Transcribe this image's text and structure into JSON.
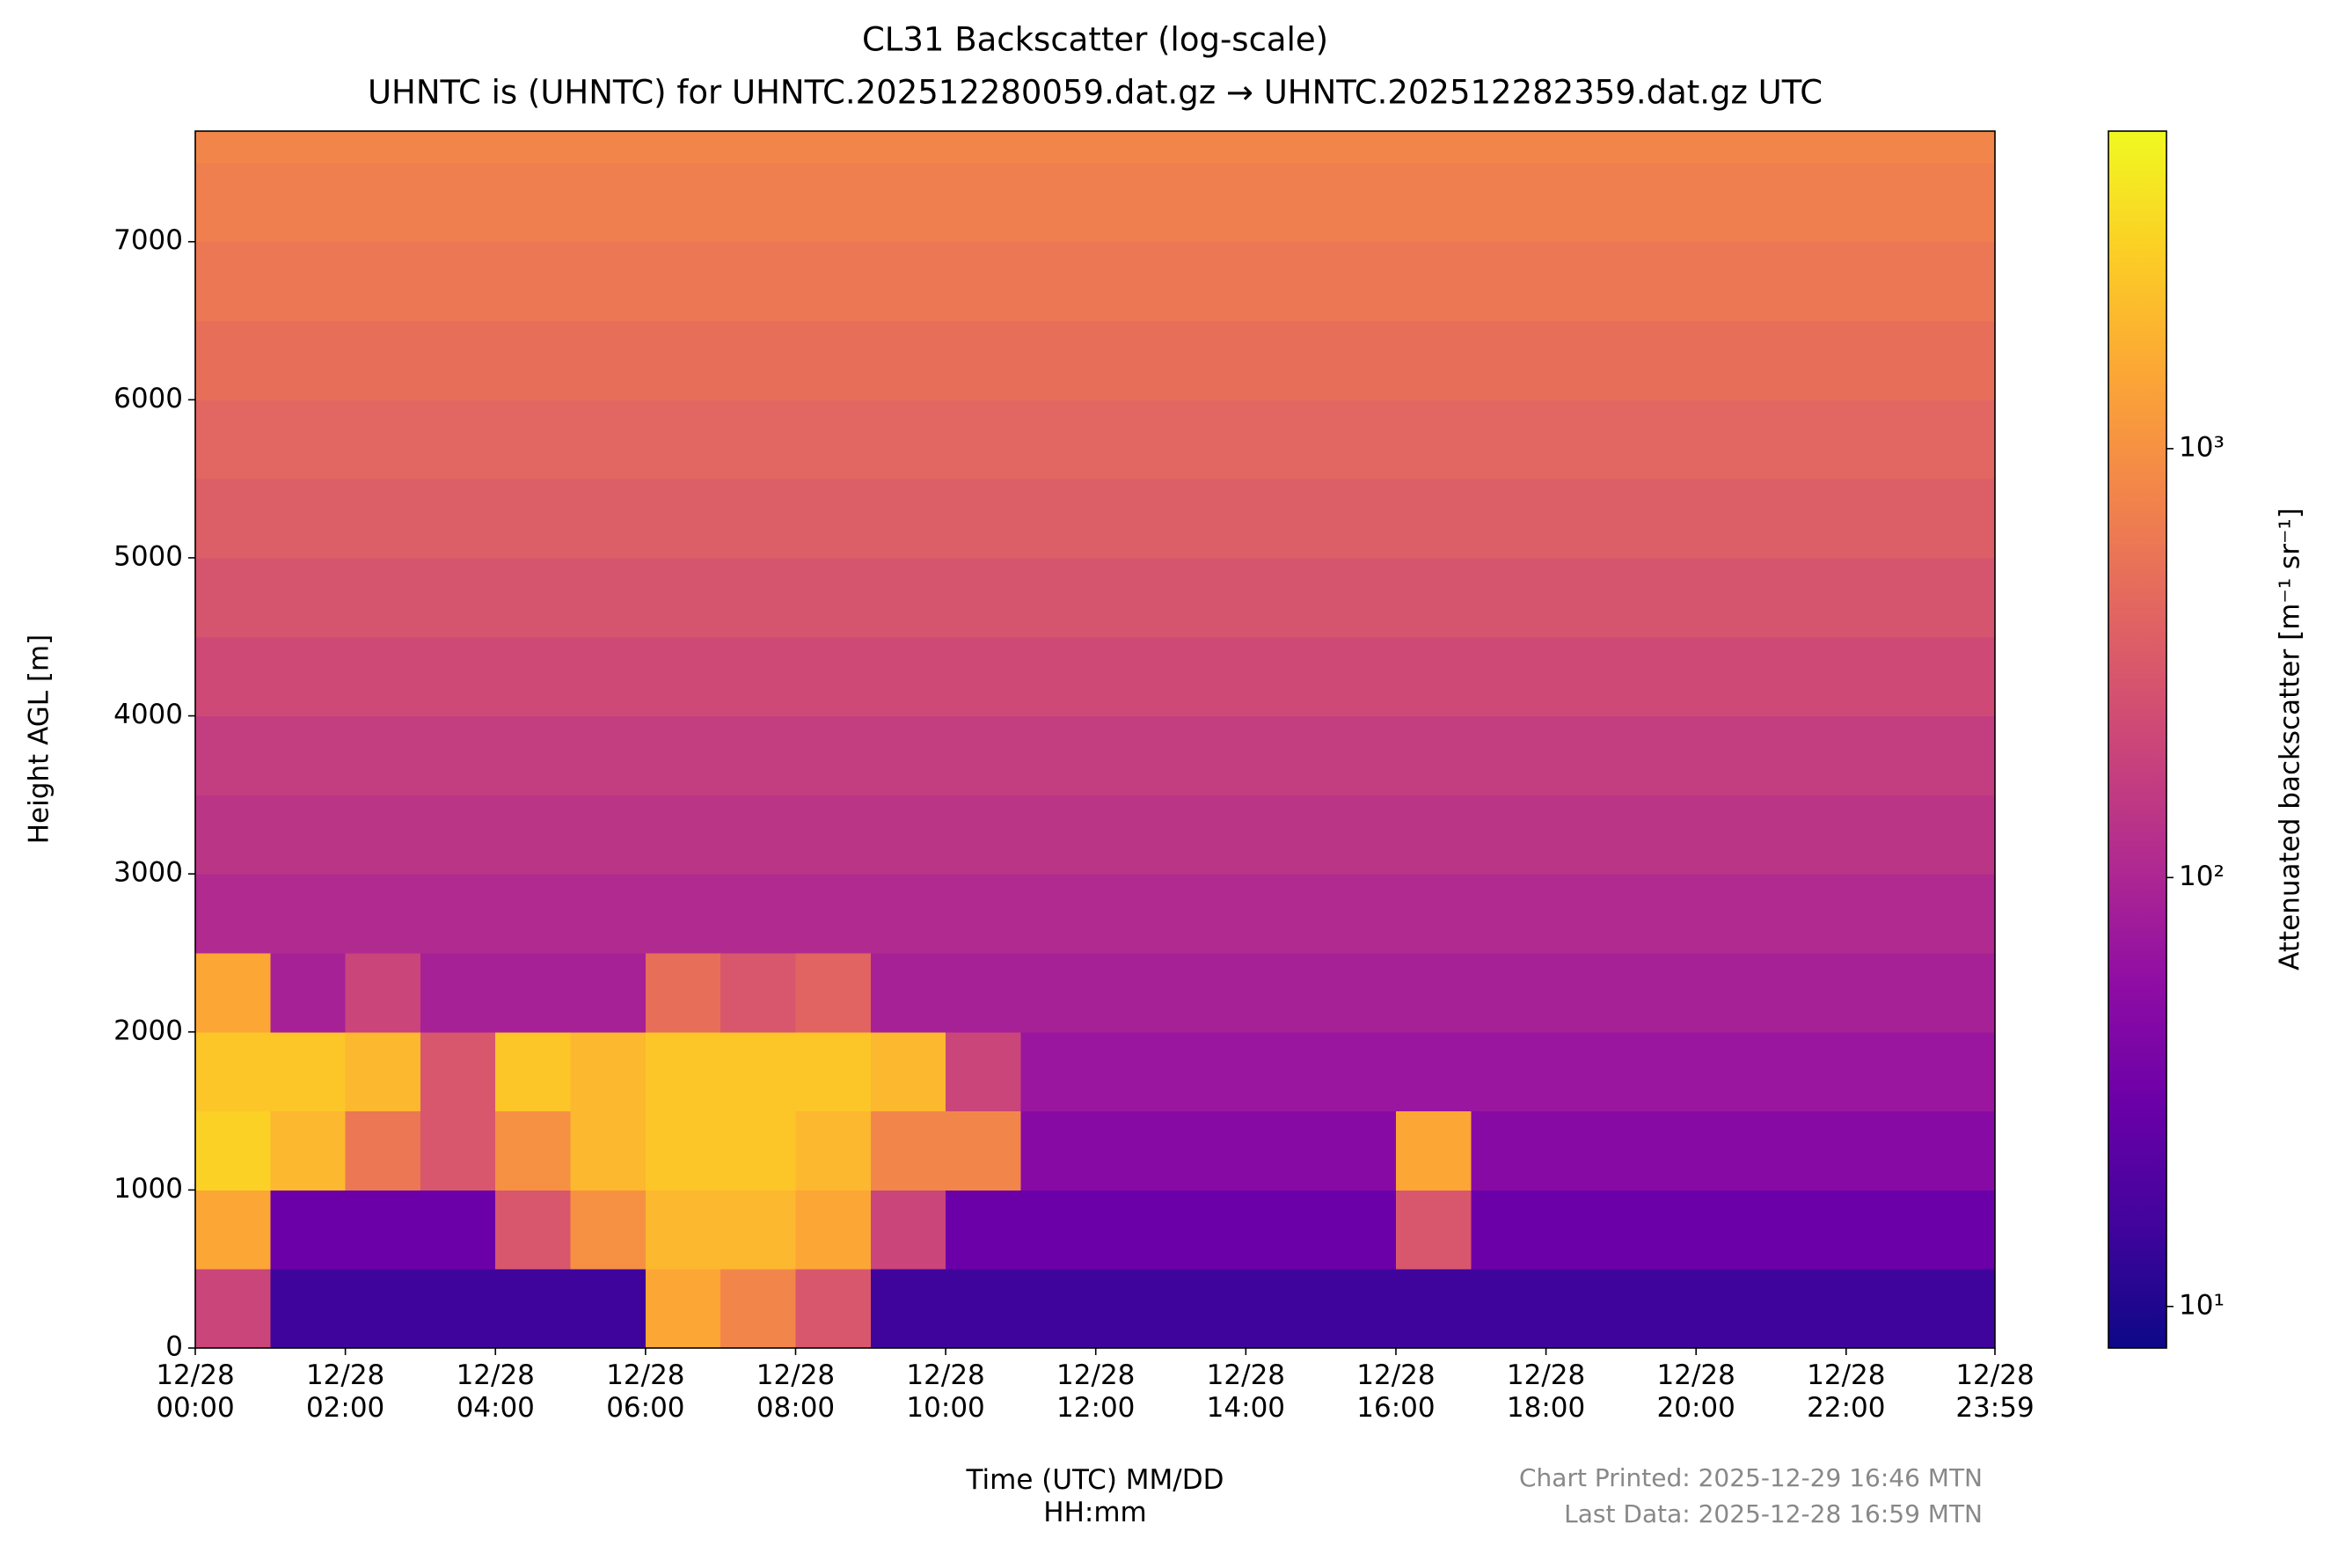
{
  "chart_data": {
    "type": "heatmap",
    "title": "CL31 Backscatter (log-scale)",
    "subtitle": "UHNTC is (UHNTC) for UHNTC.202512280059.dat.gz → UHNTC.202512282359.dat.gz UTC",
    "xlabel": "Time (UTC) MM/DD\nHH:mm",
    "ylabel": "Height AGL [m]",
    "colorbar_label": "Attenuated backscatter [m⁻¹ sr⁻¹]",
    "notes": [
      "Chart Printed: 2025-12-29 16:46 MTN",
      "Last Data: 2025-12-28 16:59 MTN"
    ],
    "colormap": "plasma",
    "color_scale": "log",
    "x_bins": [
      0,
      1,
      2,
      3,
      4,
      5,
      6,
      7,
      8,
      9,
      10,
      11,
      12,
      13,
      14,
      15,
      16,
      17,
      18,
      19,
      20,
      21,
      22,
      23,
      23.983
    ],
    "y_bins": [
      0,
      500,
      1000,
      1500,
      2000,
      2500,
      3000,
      3500,
      4000,
      4500,
      5000,
      5500,
      6000,
      6500,
      7000,
      7500,
      7700
    ],
    "z": [
      [
        200,
        15,
        15,
        15,
        15,
        15,
        1500,
        800,
        300,
        15,
        15,
        15,
        15,
        15,
        15,
        15,
        15,
        15,
        15,
        15,
        15,
        15,
        15,
        15
      ],
      [
        1500,
        30,
        30,
        30,
        300,
        1000,
        2000,
        2000,
        1500,
        200,
        30,
        30,
        30,
        30,
        30,
        30,
        300,
        30,
        30,
        30,
        30,
        30,
        30,
        30
      ],
      [
        3000,
        2000,
        600,
        300,
        1000,
        2000,
        2500,
        2500,
        2000,
        800,
        800,
        50,
        50,
        50,
        50,
        50,
        1500,
        50,
        50,
        50,
        50,
        50,
        50,
        50
      ],
      [
        2500,
        2500,
        2000,
        300,
        2500,
        2000,
        2500,
        2500,
        2500,
        2000,
        200,
        70,
        70,
        70,
        70,
        70,
        70,
        70,
        70,
        70,
        70,
        70,
        70,
        70
      ],
      [
        1500,
        90,
        200,
        90,
        90,
        90,
        500,
        300,
        400,
        90,
        90,
        90,
        90,
        90,
        90,
        90,
        90,
        90,
        90,
        90,
        90,
        90,
        90,
        90
      ],
      [
        110,
        110,
        110,
        110,
        110,
        110,
        110,
        110,
        110,
        110,
        110,
        110,
        110,
        110,
        110,
        110,
        110,
        110,
        110,
        110,
        110,
        110,
        110,
        110
      ],
      [
        140,
        140,
        140,
        140,
        140,
        140,
        140,
        140,
        140,
        140,
        140,
        140,
        140,
        140,
        140,
        140,
        140,
        140,
        140,
        140,
        140,
        140,
        140,
        140
      ],
      [
        170,
        170,
        170,
        170,
        170,
        170,
        170,
        170,
        170,
        170,
        170,
        170,
        170,
        170,
        170,
        170,
        170,
        170,
        170,
        170,
        170,
        170,
        170,
        170
      ],
      [
        220,
        220,
        220,
        220,
        220,
        220,
        220,
        220,
        220,
        220,
        220,
        220,
        220,
        220,
        220,
        220,
        220,
        220,
        220,
        220,
        220,
        220,
        220,
        220
      ],
      [
        280,
        280,
        280,
        280,
        280,
        280,
        280,
        280,
        280,
        280,
        280,
        280,
        280,
        280,
        280,
        280,
        280,
        280,
        280,
        280,
        280,
        280,
        280,
        280
      ],
      [
        350,
        350,
        350,
        350,
        350,
        350,
        350,
        350,
        350,
        350,
        350,
        350,
        350,
        350,
        350,
        350,
        350,
        350,
        350,
        350,
        350,
        350,
        350,
        350
      ],
      [
        420,
        420,
        420,
        420,
        420,
        420,
        420,
        420,
        420,
        420,
        420,
        420,
        420,
        420,
        420,
        420,
        420,
        420,
        420,
        420,
        420,
        420,
        420,
        420
      ],
      [
        500,
        500,
        500,
        500,
        500,
        500,
        500,
        500,
        500,
        500,
        500,
        500,
        500,
        500,
        500,
        500,
        500,
        500,
        500,
        500,
        500,
        500,
        500,
        500
      ],
      [
        600,
        600,
        600,
        600,
        600,
        600,
        600,
        600,
        600,
        600,
        600,
        600,
        600,
        600,
        600,
        600,
        600,
        600,
        600,
        600,
        600,
        600,
        600,
        600
      ],
      [
        700,
        700,
        700,
        700,
        700,
        700,
        700,
        700,
        700,
        700,
        700,
        700,
        700,
        700,
        700,
        700,
        700,
        700,
        700,
        700,
        700,
        700,
        700,
        700
      ],
      [
        800,
        800,
        800,
        800,
        800,
        800,
        800,
        800,
        800,
        800,
        800,
        800,
        800,
        800,
        800,
        800,
        800,
        800,
        800,
        800,
        800,
        800,
        800,
        800
      ]
    ],
    "xlim": [
      0,
      23.983
    ],
    "xticks": [
      {
        "value": 0,
        "label": "12/28\n00:00"
      },
      {
        "value": 2,
        "label": "12/28\n02:00"
      },
      {
        "value": 4,
        "label": "12/28\n04:00"
      },
      {
        "value": 6,
        "label": "12/28\n06:00"
      },
      {
        "value": 8,
        "label": "12/28\n08:00"
      },
      {
        "value": 10,
        "label": "12/28\n10:00"
      },
      {
        "value": 12,
        "label": "12/28\n12:00"
      },
      {
        "value": 14,
        "label": "12/28\n14:00"
      },
      {
        "value": 16,
        "label": "12/28\n16:00"
      },
      {
        "value": 18,
        "label": "12/28\n18:00"
      },
      {
        "value": 20,
        "label": "12/28\n20:00"
      },
      {
        "value": 22,
        "label": "12/28\n22:00"
      },
      {
        "value": 23.983,
        "label": "12/28\n23:59"
      }
    ],
    "ylim": [
      0,
      7700
    ],
    "yticks": [
      0,
      1000,
      2000,
      3000,
      4000,
      5000,
      6000,
      7000
    ],
    "clim": [
      8,
      5500
    ],
    "cticks": [
      {
        "value": 10,
        "label": "10¹"
      },
      {
        "value": 100,
        "label": "10²"
      },
      {
        "value": 1000,
        "label": "10³"
      }
    ]
  }
}
